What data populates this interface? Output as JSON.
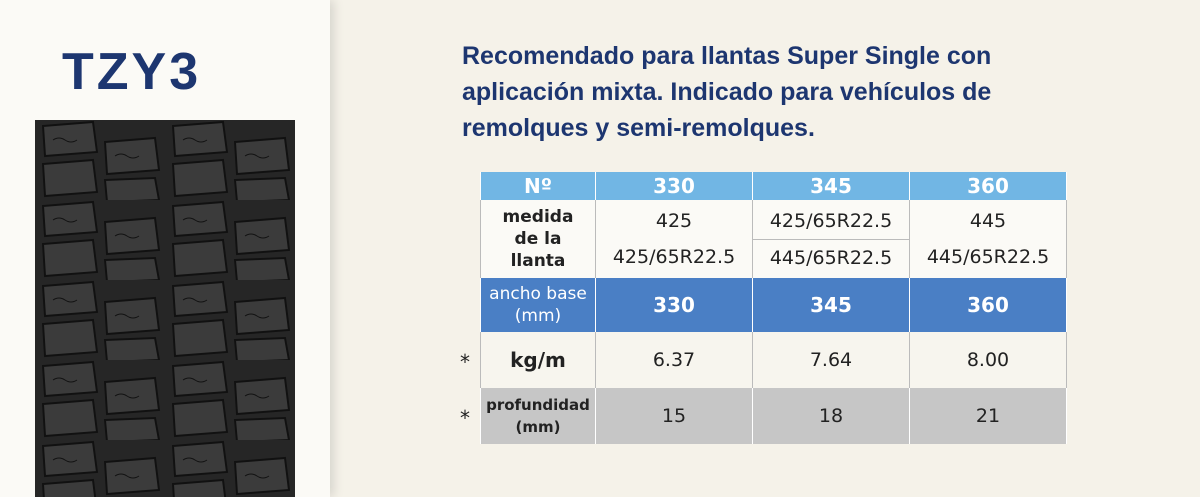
{
  "header": {
    "title": "TZY3",
    "description_lines": [
      "Recomendado para llantas Super Single con",
      "aplicación mixta. Indicado para vehículos de",
      "remolques y semi-remolques."
    ]
  },
  "table": {
    "columns": [
      "Nº",
      "330",
      "345",
      "360"
    ],
    "rows": [
      {
        "label": "medida de la llanta",
        "cells": [
          [
            "425",
            "425/65R22.5"
          ],
          [
            "425/65R22.5",
            "445/65R22.5"
          ],
          [
            "445",
            "445/65R22.5"
          ]
        ]
      },
      {
        "label": "ancho base (mm)",
        "cells": [
          [
            "330"
          ],
          [
            "345"
          ],
          [
            "360"
          ]
        ]
      },
      {
        "note": "*",
        "label": "kg/m",
        "cells": [
          [
            "6.37"
          ],
          [
            "7.64"
          ],
          [
            "8.00"
          ]
        ]
      },
      {
        "note": "*",
        "label": "profundidad (mm)",
        "cells": [
          [
            "15"
          ],
          [
            "18"
          ],
          [
            "21"
          ]
        ]
      }
    ]
  }
}
